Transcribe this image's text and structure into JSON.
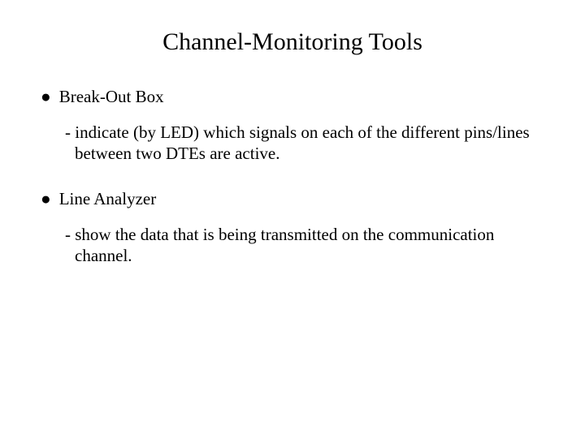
{
  "title": "Channel-Monitoring Tools",
  "items": [
    {
      "bullet": "●",
      "name": "Break-Out Box",
      "desc_prefix": "- ",
      "desc": "indicate (by LED) which signals on each of the different pins/lines between two DTEs are active."
    },
    {
      "bullet": "●",
      "name": "Line Analyzer",
      "desc_prefix": "- ",
      "desc": "show the data that is being transmitted on the communication channel."
    }
  ],
  "colors": {
    "background": "#ffffff",
    "text": "#000000"
  },
  "fonts": {
    "family": "Times New Roman",
    "title_size_pt": 30,
    "body_size_pt": 21
  }
}
